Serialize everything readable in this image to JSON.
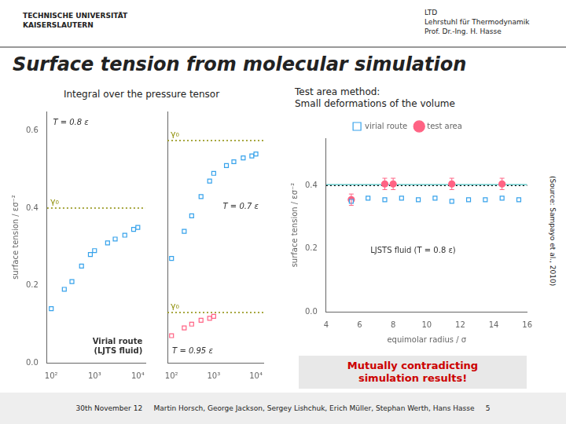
{
  "title": "Surface tension from molecular simulation",
  "annotations": [
    {
      "text": "TECHNISCHE UNIVERSITÄT\nKAISERSLAUTERN"
    },
    {
      "text": "LTD\nLehrstuhl für Thermodynamik\nProf. Dr.-Ing. H. Hasse"
    },
    {
      "text": "30th November 12     Martin Horsch, George Jackson, Sergey Lishchuk, Erich Müller, Stephan Werth, Hans Hasse     5"
    },
    {
      "text": "Mutually contradicting\nsimulation results!",
      "color": "#cc0000"
    }
  ],
  "chart_data": [
    {
      "type": "scatter",
      "subtitle": "Integral over the pressure tensor",
      "ylabel": "surface tension / εσ⁻²",
      "log": "x",
      "grid": false,
      "xlim": [
        80,
        15000
      ],
      "xticks": [
        {
          "value": 100,
          "label": "10²"
        },
        {
          "value": 1000,
          "label": "10³"
        },
        {
          "value": 10000,
          "label": "10⁴"
        }
      ],
      "ylim": [
        0.0,
        0.65
      ],
      "yticks": [
        {
          "value": 0.0,
          "label": "0.0"
        },
        0.2,
        0.4,
        0.6
      ],
      "series": [
        {
          "name": "T = 0.8 ε",
          "marker": "square",
          "x": [
            100,
            200,
            300,
            500,
            800,
            1000,
            2000,
            3000,
            5000,
            8000,
            10000
          ],
          "values": [
            0.14,
            0.19,
            0.21,
            0.25,
            0.28,
            0.29,
            0.31,
            0.32,
            0.33,
            0.345,
            0.35
          ]
        }
      ],
      "hlines": [
        {
          "y": 0.4,
          "label": "γ₀",
          "line_style": "dotted",
          "color": "#8b8b00"
        }
      ],
      "annotations": [
        "Virial route\n(LJTS fluid)"
      ]
    },
    {
      "type": "scatter",
      "log": "x",
      "grid": false,
      "tick_labels": "x",
      "xlim": [
        80,
        15000
      ],
      "xticks": [
        {
          "value": 100,
          "label": "10²"
        },
        {
          "value": 1000,
          "label": "10³"
        },
        {
          "value": 10000,
          "label": "10⁴"
        }
      ],
      "ylim": [
        0.0,
        0.65
      ],
      "series": [
        {
          "name": "T = 0.7 ε",
          "marker": "square",
          "x": [
            100,
            200,
            300,
            500,
            800,
            1000,
            2000,
            3000,
            5000,
            8000,
            10000
          ],
          "values": [
            0.27,
            0.34,
            0.38,
            0.43,
            0.47,
            0.49,
            0.51,
            0.52,
            0.53,
            0.535,
            0.54
          ]
        },
        {
          "name": "T = 0.95 ε",
          "marker": "square",
          "x": [
            100,
            200,
            300,
            500,
            800,
            1000
          ],
          "values": [
            0.07,
            0.09,
            0.1,
            0.11,
            0.115,
            0.12
          ]
        }
      ],
      "hlines": [
        {
          "y": 0.575,
          "label": "γ₀",
          "line_style": "dotted",
          "color": "#8b8b00"
        },
        {
          "y": 0.13,
          "label": "γ₀",
          "line_style": "dotted",
          "color": "#8b8b00"
        }
      ]
    },
    {
      "type": "scatter",
      "subtitle": "Test area method:\nSmall deformations of the volume",
      "xlabel": "equimolar radius / σ",
      "ylabel": "surface tension / εσ⁻²",
      "grid": false,
      "legend": "top",
      "xlim": [
        4,
        16
      ],
      "xticks": [
        4,
        6,
        8,
        10,
        12,
        14,
        16
      ],
      "ylim": [
        0.0,
        0.55
      ],
      "yticks": [
        {
          "value": 0.0,
          "label": "0.0"
        },
        0.2,
        0.4
      ],
      "series": [
        {
          "name": "virial route",
          "marker": "square",
          "x": [
            5.5,
            6.5,
            7.5,
            8.5,
            9.5,
            10.5,
            11.5,
            12.5,
            13.5,
            14.5,
            15.5
          ],
          "values": [
            0.35,
            0.36,
            0.355,
            0.36,
            0.355,
            0.36,
            0.35,
            0.355,
            0.355,
            0.36,
            0.355
          ]
        },
        {
          "name": "test area",
          "marker": "circle",
          "x": [
            5.5,
            7.5,
            8.0,
            11.5,
            14.5
          ],
          "values": [
            0.355,
            0.405,
            0.405,
            0.405,
            0.405
          ],
          "errors": [
            0.018,
            0.018,
            0.018,
            0.018,
            0.018
          ]
        },
        {
          "type": "line",
          "x": [
            4,
            16
          ],
          "values": [
            0.403,
            0.403
          ]
        }
      ],
      "hlines": [
        {
          "y": 0.4,
          "line_style": "dotted",
          "color": "#000000"
        }
      ],
      "annotations": [
        "LJSTS fluid (T = 0.8 ε)",
        "(Source: Sampayo et al., 2010)"
      ]
    }
  ]
}
